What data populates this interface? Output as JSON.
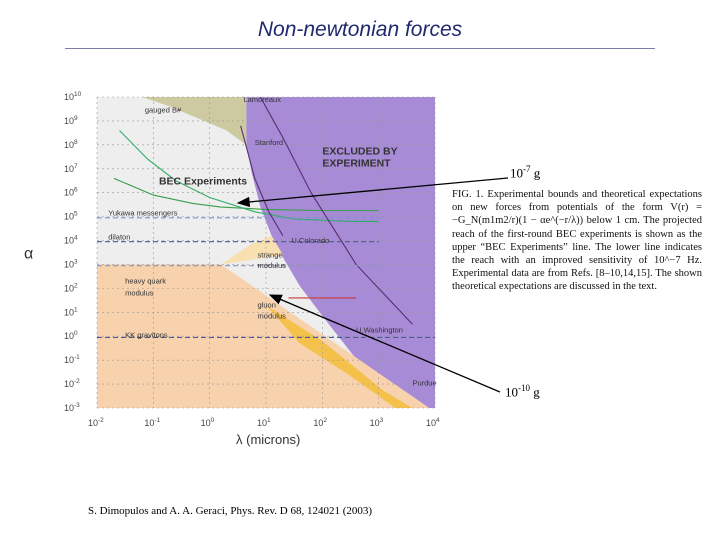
{
  "slide": {
    "title": "Non-newtonian forces",
    "citation": "S. Dimopulos and A. A. Geraci, Phys. Rev. D 68, 124021 (2003)",
    "marker_high": {
      "base": "10",
      "exp": "-7",
      "unit": "g"
    },
    "marker_low": {
      "base": "10",
      "exp": "-10",
      "unit": "g"
    }
  },
  "caption": "FIG. 1. Experimental bounds and theoretical expectations on new forces from potentials of the form V(r) = −G_N(m1m2/r)(1 − αe^(−r/λ)) below 1 cm. The projected reach of the first-round BEC experiments is shown as the upper “BEC Experiments” line. The lower line indicates the reach with an improved sensitivity of 10^−7 Hz. Experimental data are from Refs. [8–10,14,15]. The shown theoretical expectations are discussed in the text.",
  "chart_data": {
    "type": "line",
    "xlabel": "λ (microns)",
    "ylabel": "α",
    "xscale": "log",
    "yscale": "log",
    "xlim_exp": [
      -2,
      4
    ],
    "ylim_exp": [
      -3,
      10
    ],
    "x_ticks": [
      {
        "base": "10",
        "exp": "-2"
      },
      {
        "base": "10",
        "exp": "-1"
      },
      {
        "base": "10",
        "exp": "0"
      },
      {
        "base": "10",
        "exp": "1"
      },
      {
        "base": "10",
        "exp": "2"
      },
      {
        "base": "10",
        "exp": "3"
      },
      {
        "base": "10",
        "exp": "4"
      }
    ],
    "y_ticks": [
      {
        "base": "10",
        "exp": "-3"
      },
      {
        "base": "10",
        "exp": "-2"
      },
      {
        "base": "10",
        "exp": "-1"
      },
      {
        "base": "10",
        "exp": "0"
      },
      {
        "base": "10",
        "exp": "1"
      },
      {
        "base": "10",
        "exp": "2"
      },
      {
        "base": "10",
        "exp": "3"
      },
      {
        "base": "10",
        "exp": "4"
      },
      {
        "base": "10",
        "exp": "5"
      },
      {
        "base": "10",
        "exp": "6"
      },
      {
        "base": "10",
        "exp": "7"
      },
      {
        "base": "10",
        "exp": "8"
      },
      {
        "base": "10",
        "exp": "9"
      },
      {
        "base": "10",
        "exp": "10"
      }
    ],
    "regions": [
      {
        "name": "excluded",
        "color": "#a78bd6",
        "points": [
          [
            0.65,
            10
          ],
          [
            4,
            10
          ],
          [
            4,
            -3
          ],
          [
            3.6,
            -3
          ],
          [
            3.1,
            -2.3
          ],
          [
            2.55,
            -0.8
          ],
          [
            2.05,
            0.7
          ],
          [
            1.6,
            2.1
          ],
          [
            1.3,
            3.3
          ],
          [
            1.1,
            4.2
          ],
          [
            0.9,
            5.4
          ],
          [
            0.75,
            6.8
          ],
          [
            0.65,
            8.0
          ]
        ]
      },
      {
        "name": "gauged-b",
        "color": "#cdc9a0",
        "points": [
          [
            -1.2,
            10
          ],
          [
            0.65,
            10
          ],
          [
            0.65,
            8.0
          ],
          [
            0.3,
            8.6
          ],
          [
            -0.1,
            9.0
          ],
          [
            -0.7,
            9.6
          ]
        ]
      },
      {
        "name": "heavy-quark",
        "color": "#f7d2ad",
        "points": [
          [
            -2,
            3.0
          ],
          [
            0.2,
            3.0
          ],
          [
            3.9,
            -3
          ],
          [
            -2,
            -3
          ]
        ]
      },
      {
        "name": "strange-gluon",
        "color": "#f9e0b0",
        "points": [
          [
            0.2,
            3.0
          ],
          [
            1.3,
            3.4
          ],
          [
            1.1,
            4.2
          ],
          [
            0.7,
            3.8
          ]
        ]
      },
      {
        "name": "gluon-strip",
        "color": "#f4c14a",
        "points": [
          [
            1.0,
            1.3
          ],
          [
            2.0,
            -0.2
          ],
          [
            3.1,
            -2.3
          ],
          [
            3.6,
            -3
          ],
          [
            3.3,
            -3
          ],
          [
            2.4,
            -1.5
          ],
          [
            1.6,
            -0.3
          ]
        ]
      }
    ],
    "series": [
      {
        "name": "BEC Experiments (upper)",
        "color": "#3a9e4a",
        "points": [
          [
            -1.7,
            6.6
          ],
          [
            -1,
            5.9
          ],
          [
            -0.3,
            5.55
          ],
          [
            0.2,
            5.4
          ],
          [
            1.0,
            5.3
          ],
          [
            2.0,
            5.25
          ],
          [
            3,
            5.25
          ]
        ]
      },
      {
        "name": "BEC Experiments (lower)",
        "color": "#2fae6a",
        "points": [
          [
            -1.6,
            8.6
          ],
          [
            -1.1,
            7.4
          ],
          [
            -0.6,
            6.5
          ],
          [
            0,
            5.8
          ],
          [
            0.8,
            5.2
          ],
          [
            1.5,
            4.9
          ],
          [
            2.5,
            4.8
          ],
          [
            3,
            4.8
          ]
        ]
      },
      {
        "name": "Lamoreaux",
        "color": "#5a2e6e",
        "points": [
          [
            0.9,
            10
          ],
          [
            1.3,
            8.3
          ],
          [
            1.8,
            6.0
          ],
          [
            2.6,
            3.0
          ],
          [
            3.6,
            0.5
          ]
        ]
      },
      {
        "name": "Stanford",
        "color": "#5a2e6e",
        "points": [
          [
            0.55,
            8.8
          ],
          [
            0.8,
            6.6
          ],
          [
            1.05,
            5.2
          ],
          [
            1.3,
            4.2
          ]
        ]
      },
      {
        "name": "Yukawa messengers",
        "color": "#7d8fd8",
        "dashed": true,
        "points": [
          [
            -2,
            4.95
          ],
          [
            3,
            4.95
          ]
        ]
      },
      {
        "name": "dilaton",
        "color": "#4a5a9a",
        "dashed": true,
        "points": [
          [
            -2,
            3.95
          ],
          [
            3,
            3.95
          ]
        ]
      },
      {
        "name": "moduli",
        "color": "#8a95c8",
        "dashed": true,
        "points": [
          [
            -2,
            2.95
          ],
          [
            3,
            2.95
          ]
        ]
      },
      {
        "name": "KK gravitons",
        "color": "#4a5a9a",
        "dashed": true,
        "points": [
          [
            -2,
            -0.05
          ],
          [
            4,
            -0.05
          ]
        ]
      },
      {
        "name": "gluon modulus",
        "color": "#c83a3a",
        "points": [
          [
            1.4,
            1.6
          ],
          [
            2.6,
            1.6
          ]
        ]
      }
    ],
    "labels": [
      {
        "text": "gauged B#",
        "at": [
          -1.15,
          9.35
        ],
        "color": "#333"
      },
      {
        "text": "Lamoreaux",
        "at": [
          0.6,
          9.8
        ],
        "color": "#333"
      },
      {
        "text": "Stanford",
        "at": [
          0.8,
          8.0
        ],
        "color": "#333"
      },
      {
        "text": "EXCLUDED BY",
        "at": [
          2.0,
          7.6
        ],
        "color": "#333",
        "bold": true
      },
      {
        "text": "EXPERIMENT",
        "at": [
          2.0,
          7.1
        ],
        "color": "#333",
        "bold": true
      },
      {
        "text": "BEC Experiments",
        "at": [
          -0.9,
          6.35
        ],
        "color": "#333",
        "bold": true
      },
      {
        "text": "Yukawa messengers",
        "at": [
          -1.8,
          5.05
        ],
        "color": "#333"
      },
      {
        "text": "dilaton",
        "at": [
          -1.8,
          4.05
        ],
        "color": "#333"
      },
      {
        "text": "U.Colorado",
        "at": [
          1.45,
          3.9
        ],
        "color": "#333"
      },
      {
        "text": "strange",
        "at": [
          0.85,
          3.3
        ],
        "color": "#333"
      },
      {
        "text": "modulus",
        "at": [
          0.85,
          2.85
        ],
        "color": "#333"
      },
      {
        "text": "heavy quark",
        "at": [
          -1.5,
          2.2
        ],
        "color": "#333"
      },
      {
        "text": "modulus",
        "at": [
          -1.5,
          1.7
        ],
        "color": "#333"
      },
      {
        "text": "gluon",
        "at": [
          0.85,
          1.2
        ],
        "color": "#333"
      },
      {
        "text": "modulus",
        "at": [
          0.85,
          0.75
        ],
        "color": "#333"
      },
      {
        "text": "U.Washington",
        "at": [
          2.6,
          0.15
        ],
        "color": "#333"
      },
      {
        "text": "KK gravitons",
        "at": [
          -1.5,
          -0.05
        ],
        "color": "#333"
      },
      {
        "text": "Purdue",
        "at": [
          3.6,
          -2.05
        ],
        "color": "#333"
      }
    ]
  }
}
